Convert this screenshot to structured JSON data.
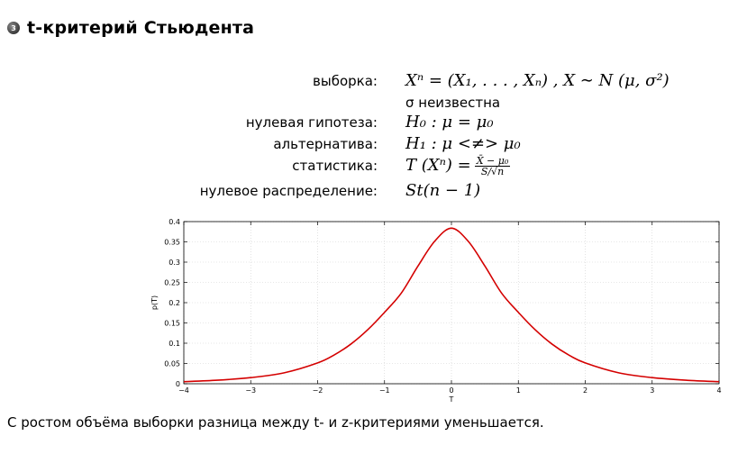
{
  "header": {
    "number": "3",
    "title": "t-критерий Стьюдента"
  },
  "definitions": [
    {
      "label": "выборка:",
      "value": "Xⁿ = (X₁, . . . , Xₙ) , X ∼ N (μ, σ²)"
    },
    {
      "label": "",
      "value": "σ неизвестна"
    },
    {
      "label": "нулевая гипотеза:",
      "value": "H₀ : μ = μ₀"
    },
    {
      "label": "альтернатива:",
      "value": "H₁ : μ <≠> μ₀"
    },
    {
      "label": "статистика:",
      "value": "T (Xⁿ) =",
      "frac_num": "X̄ − μ₀",
      "frac_den": "S/√n"
    },
    {
      "label": "нулевое распределение:",
      "value": "St(n − 1)"
    }
  ],
  "chart_data": {
    "type": "line",
    "title": "",
    "xlabel": "T",
    "ylabel": "p(T)",
    "xlim": [
      -4,
      4
    ],
    "ylim": [
      0,
      0.4
    ],
    "xticks": [
      -4,
      -3,
      -2,
      -1,
      0,
      1,
      2,
      3,
      4
    ],
    "yticks": [
      0,
      0.05,
      0.1,
      0.15,
      0.2,
      0.25,
      0.3,
      0.35,
      0.4
    ],
    "grid": true,
    "series": [
      {
        "color": "#d40000",
        "x": [
          -4,
          -3.5,
          -3,
          -2.5,
          -2,
          -1.75,
          -1.5,
          -1.25,
          -1,
          -0.75,
          -0.5,
          -0.25,
          0,
          0.25,
          0.5,
          0.75,
          1,
          1.25,
          1.5,
          1.75,
          2,
          2.5,
          3,
          3.5,
          4
        ],
        "y": [
          0.0051,
          0.0087,
          0.0151,
          0.0269,
          0.0513,
          0.0712,
          0.0982,
          0.1334,
          0.1761,
          0.2235,
          0.2904,
          0.3516,
          0.3838,
          0.3516,
          0.2904,
          0.2235,
          0.1761,
          0.1334,
          0.0982,
          0.0712,
          0.0513,
          0.0269,
          0.0151,
          0.0087,
          0.0051
        ]
      }
    ]
  },
  "conclusion": "С ростом объёма выборки разница между t- и z-критериями уменьшается."
}
